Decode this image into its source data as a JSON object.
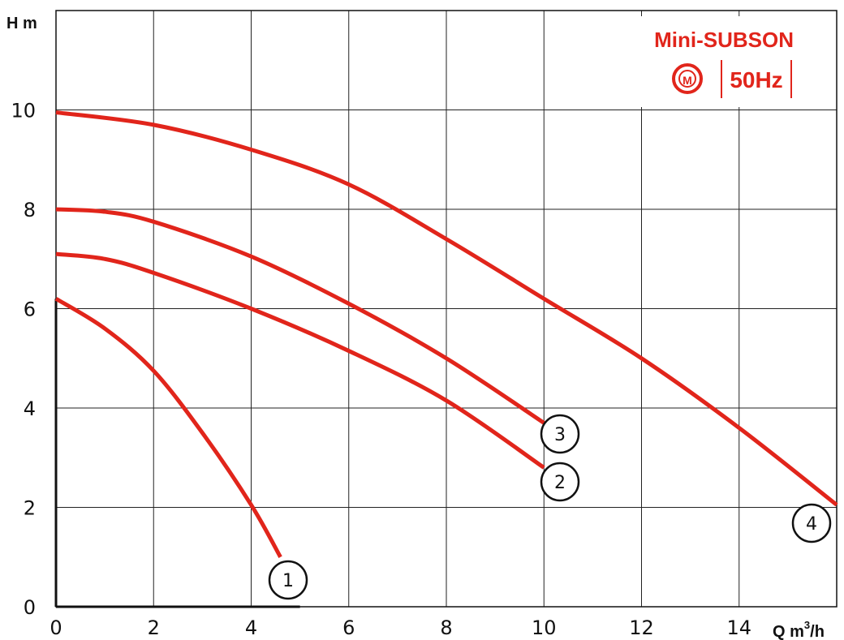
{
  "chart_data": {
    "type": "line",
    "ylabel": "H m",
    "xlabel": "Q m",
    "xlabel_sup": "3",
    "xlabel_suffix": "/h",
    "xlim": [
      0,
      16
    ],
    "ylim": [
      0,
      12
    ],
    "x_ticks": [
      0,
      2,
      4,
      6,
      8,
      10,
      12,
      14
    ],
    "y_ticks": [
      0,
      2,
      4,
      6,
      8,
      10
    ],
    "grid": true,
    "series": [
      {
        "name": "1",
        "points": [
          [
            0,
            6.2
          ],
          [
            1,
            5.6
          ],
          [
            2,
            4.75
          ],
          [
            3,
            3.5
          ],
          [
            4,
            2.05
          ],
          [
            4.6,
            1.0
          ]
        ]
      },
      {
        "name": "2",
        "points": [
          [
            0,
            7.1
          ],
          [
            1,
            7.0
          ],
          [
            2,
            6.72
          ],
          [
            4,
            6.0
          ],
          [
            6,
            5.15
          ],
          [
            8,
            4.15
          ],
          [
            10,
            2.8
          ]
        ]
      },
      {
        "name": "3",
        "points": [
          [
            0,
            8.0
          ],
          [
            1,
            7.95
          ],
          [
            2,
            7.75
          ],
          [
            4,
            7.05
          ],
          [
            6,
            6.1
          ],
          [
            8,
            5.0
          ],
          [
            10,
            3.7
          ]
        ]
      },
      {
        "name": "4",
        "points": [
          [
            0,
            9.95
          ],
          [
            2,
            9.7
          ],
          [
            4,
            9.2
          ],
          [
            6,
            8.5
          ],
          [
            8,
            7.4
          ],
          [
            10,
            6.2
          ],
          [
            12,
            5.0
          ],
          [
            14,
            3.6
          ],
          [
            16,
            2.05
          ]
        ]
      }
    ]
  },
  "brand": {
    "title": "Mini-SUBSON",
    "logo_letter": "M",
    "frequency": "50Hz",
    "color": "#e1251b"
  },
  "curve_color": "#e1251b"
}
